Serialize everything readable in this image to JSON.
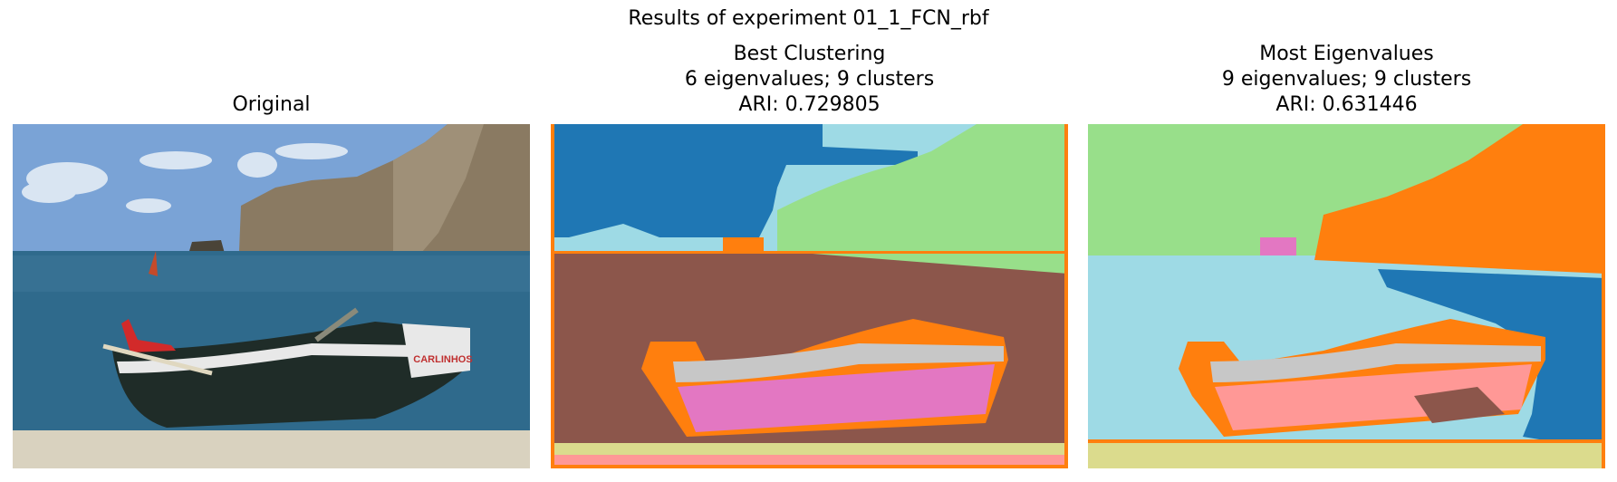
{
  "figure": {
    "suptitle": "Results of experiment 01_1_FCN_rbf"
  },
  "panels": [
    {
      "id": "original",
      "title_lines": [
        "Original"
      ]
    },
    {
      "id": "best",
      "title_lines": [
        "Best Clustering",
        "6 eigenvalues; 9 clusters",
        "ARI: 0.729805"
      ]
    },
    {
      "id": "most",
      "title_lines": [
        "Most Eigenvalues",
        "9 eigenvalues; 9 clusters",
        "ARI: 0.631446"
      ]
    }
  ],
  "photo": {
    "boat_label": "CARLINHOS"
  },
  "colors": {
    "sky": "#7aa3d6",
    "sea": "#2f6a8c",
    "cliff": "#8a7a62",
    "sand": "#d9d2bf",
    "boat_hull": "#1f2c28",
    "boat_stripe": "#e8e8e8",
    "boat_red": "#d22a2a",
    "cluster_blue": "#1f77b4",
    "cluster_lightblue": "#9edae5",
    "cluster_green": "#98df8a",
    "cluster_orange": "#ff7f0e",
    "cluster_brown": "#8c564b",
    "cluster_pink": "#e377c2",
    "cluster_salmon": "#ff9896",
    "cluster_gray": "#c7c7c7",
    "cluster_khaki": "#dbdb8d"
  },
  "chart_data": [
    {
      "type": "image",
      "title": "Original",
      "content": "color photograph of a beached fishing boat"
    },
    {
      "type": "heatmap",
      "title": "Best Clustering",
      "subtitle": [
        "6 eigenvalues; 9 clusters",
        "ARI: 0.729805"
      ],
      "eigenvalues": 6,
      "clusters": 9,
      "ari": 0.729805
    },
    {
      "type": "heatmap",
      "title": "Most Eigenvalues",
      "subtitle": [
        "9 eigenvalues; 9 clusters",
        "ARI: 0.631446"
      ],
      "eigenvalues": 9,
      "clusters": 9,
      "ari": 0.631446
    }
  ]
}
